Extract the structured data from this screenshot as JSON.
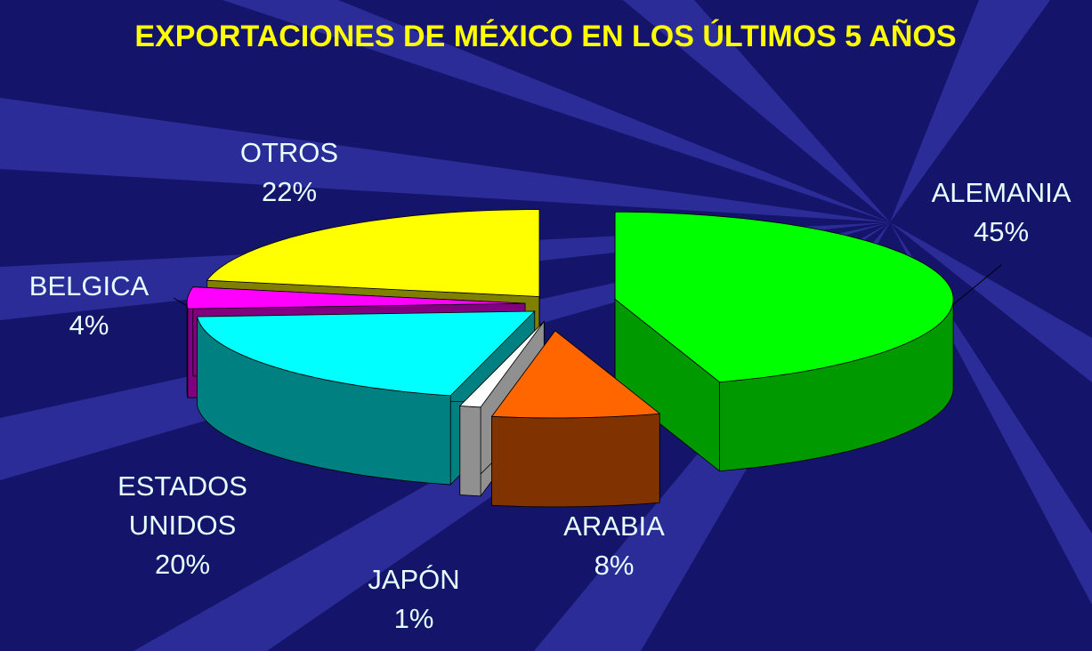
{
  "chart_data": {
    "type": "pie3d",
    "title": "EXPORTACIONES DE MÉXICO EN LOS ÚLTIMOS 5 AÑOS",
    "categories": [
      "ALEMANIA",
      "ARABIA",
      "JAPÓN",
      "ESTADOS UNIDOS",
      "BELGICA",
      "OTROS"
    ],
    "values": [
      45,
      8,
      1,
      20,
      4,
      22
    ],
    "value_labels": [
      "45%",
      "8%",
      "1%",
      "20%",
      "4%",
      "22%"
    ],
    "colors": [
      "#00ff00",
      "#ff6600",
      "#ffffff",
      "#00ffff",
      "#ff00ff",
      "#ffff00"
    ],
    "side_colors": [
      "#009900",
      "#803300",
      "#909090",
      "#008080",
      "#800080",
      "#808000"
    ]
  }
}
